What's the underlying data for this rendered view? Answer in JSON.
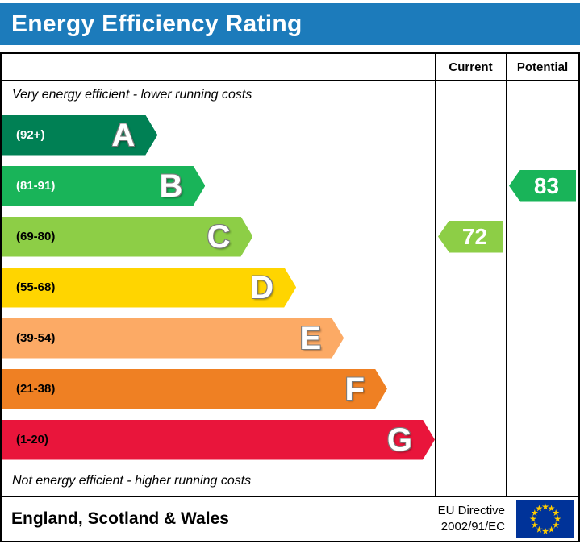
{
  "header": {
    "title": "Energy Efficiency Rating",
    "bg_color": "#1c7bbb"
  },
  "columns": {
    "current": "Current",
    "potential": "Potential"
  },
  "notes": {
    "top": "Very energy efficient - lower running costs",
    "bottom": "Not energy efficient - higher running costs"
  },
  "bands": [
    {
      "letter": "A",
      "range": "(92+)",
      "color": "#008054",
      "width_pct": 36,
      "range_text_color": "#ffffff"
    },
    {
      "letter": "B",
      "range": "(81-91)",
      "color": "#19b459",
      "width_pct": 47,
      "range_text_color": "#ffffff"
    },
    {
      "letter": "C",
      "range": "(69-80)",
      "color": "#8dce46",
      "width_pct": 58,
      "range_text_color": "#000000"
    },
    {
      "letter": "D",
      "range": "(55-68)",
      "color": "#ffd500",
      "width_pct": 68,
      "range_text_color": "#000000"
    },
    {
      "letter": "E",
      "range": "(39-54)",
      "color": "#fcaa65",
      "width_pct": 79,
      "range_text_color": "#000000"
    },
    {
      "letter": "F",
      "range": "(21-38)",
      "color": "#ef8023",
      "width_pct": 89,
      "range_text_color": "#000000"
    },
    {
      "letter": "G",
      "range": "(1-20)",
      "color": "#e9153b",
      "width_pct": 100,
      "range_text_color": "#000000"
    }
  ],
  "current": {
    "value": "72",
    "color": "#8dce46",
    "band_index": 2
  },
  "potential": {
    "value": "83",
    "color": "#19b459",
    "band_index": 1
  },
  "footer": {
    "region": "England, Scotland & Wales",
    "directive_line1": "EU Directive",
    "directive_line2": "2002/91/EC",
    "eu_flag": {
      "bg": "#003399",
      "stars": "#ffcc00"
    }
  },
  "chart_data": {
    "type": "bar",
    "title": "Energy Efficiency Rating",
    "categories": [
      "A",
      "B",
      "C",
      "D",
      "E",
      "F",
      "G"
    ],
    "band_ranges": [
      "92+",
      "81-91",
      "69-80",
      "55-68",
      "39-54",
      "21-38",
      "1-20"
    ],
    "band_colors": [
      "#008054",
      "#19b459",
      "#8dce46",
      "#ffd500",
      "#fcaa65",
      "#ef8023",
      "#e9153b"
    ],
    "bar_relative_widths_pct": [
      36,
      47,
      58,
      68,
      79,
      89,
      100
    ],
    "series": [
      {
        "name": "Current",
        "value": 72,
        "band": "C"
      },
      {
        "name": "Potential",
        "value": 83,
        "band": "B"
      }
    ],
    "annotations": [
      "Very energy efficient - lower running costs",
      "Not energy efficient - higher running costs"
    ],
    "footer_region": "England, Scotland & Wales",
    "footer_directive": "EU Directive 2002/91/EC"
  }
}
